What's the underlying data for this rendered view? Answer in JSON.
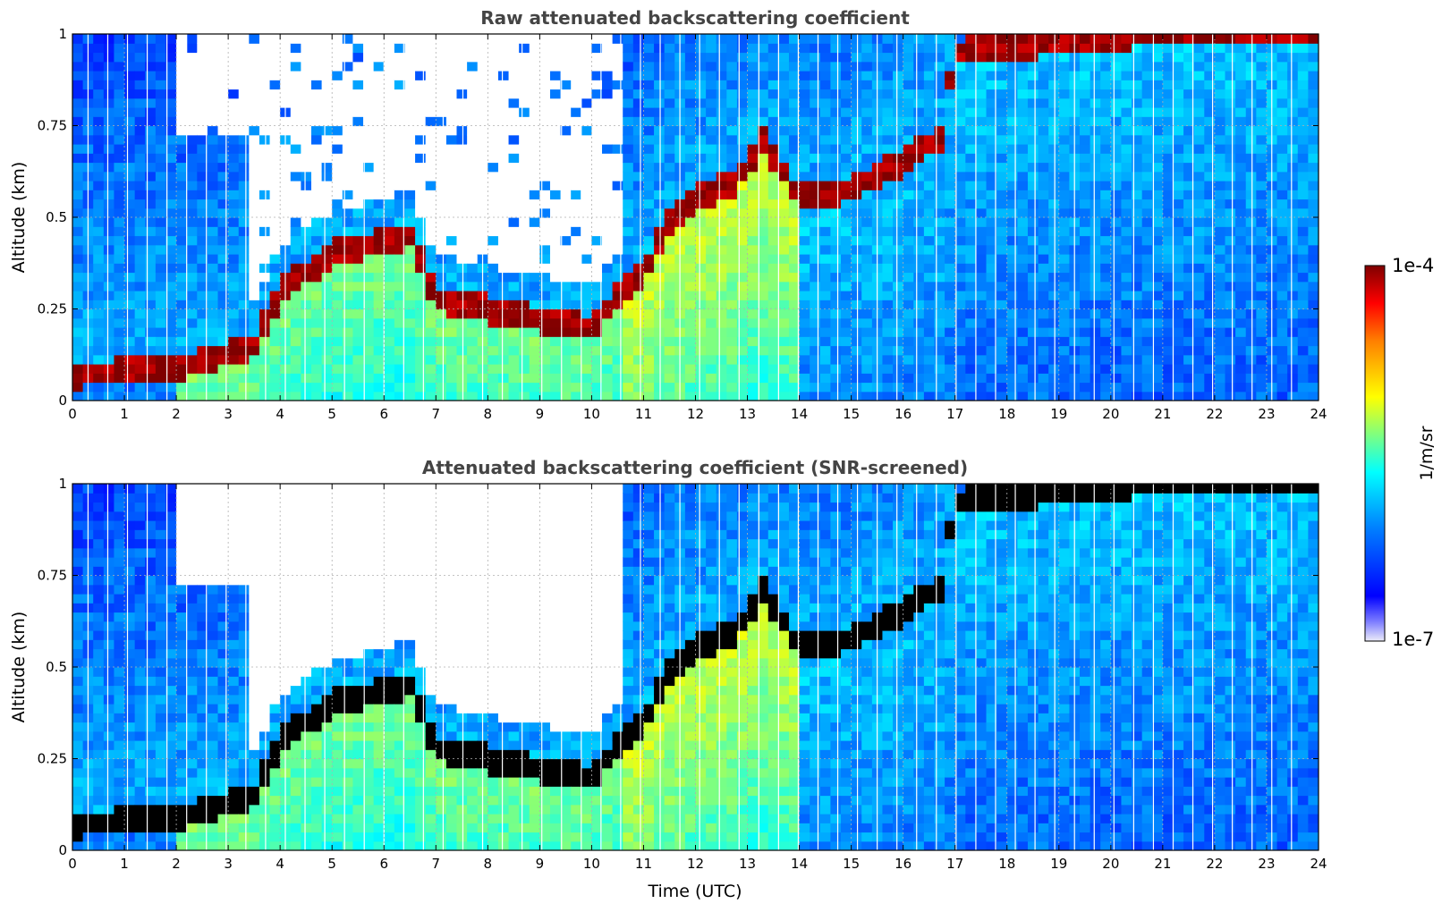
{
  "chart_data": [
    {
      "type": "heatmap",
      "title": "Raw attenuated backscattering coefficient",
      "xlabel": "",
      "ylabel": "Altitude (km)",
      "xlim": [
        0,
        24
      ],
      "ylim": [
        0,
        1
      ],
      "x_ticks": [
        "0",
        "1",
        "2",
        "3",
        "4",
        "5",
        "6",
        "7",
        "8",
        "9",
        "10",
        "11",
        "12",
        "13",
        "14",
        "15",
        "16",
        "17",
        "18",
        "19",
        "20",
        "21",
        "22",
        "23",
        "24"
      ],
      "y_ticks": [
        "0",
        "0.25",
        "0.5",
        "0.75",
        "1"
      ],
      "grid": true,
      "variant": "raw",
      "layer_top_km": [
        [
          0,
          0.07
        ],
        [
          2,
          0.09
        ],
        [
          3.5,
          0.15
        ],
        [
          4,
          0.3
        ],
        [
          5,
          0.4
        ],
        [
          6.5,
          0.45
        ],
        [
          7,
          0.28
        ],
        [
          8,
          0.25
        ],
        [
          9,
          0.22
        ],
        [
          10,
          0.2
        ],
        [
          10.5,
          0.28
        ],
        [
          11,
          0.35
        ],
        [
          11.5,
          0.48
        ],
        [
          12,
          0.55
        ],
        [
          12.8,
          0.6
        ],
        [
          13.3,
          0.72
        ],
        [
          14,
          0.55
        ],
        [
          15,
          0.58
        ],
        [
          16,
          0.65
        ],
        [
          16.7,
          0.72
        ],
        [
          17,
          0.95
        ],
        [
          20.5,
          1.0
        ]
      ],
      "colorbar": {
        "label": "1/m/sr",
        "min_label": "1e-7",
        "max_label": "1e-4",
        "scale": "log"
      }
    },
    {
      "type": "heatmap",
      "title": "Attenuated backscattering coefficient (SNR-screened)",
      "xlabel": "Time (UTC)",
      "ylabel": "Altitude (km)",
      "xlim": [
        0,
        24
      ],
      "ylim": [
        0,
        1
      ],
      "x_ticks": [
        "0",
        "1",
        "2",
        "3",
        "4",
        "5",
        "6",
        "7",
        "8",
        "9",
        "10",
        "11",
        "12",
        "13",
        "14",
        "15",
        "16",
        "17",
        "18",
        "19",
        "20",
        "21",
        "22",
        "23",
        "24"
      ],
      "y_ticks": [
        "0",
        "0.25",
        "0.5",
        "0.75",
        "1"
      ],
      "grid": true,
      "variant": "screened",
      "layer_top_km": [
        [
          0,
          0.07
        ],
        [
          2,
          0.09
        ],
        [
          3.5,
          0.15
        ],
        [
          4,
          0.3
        ],
        [
          5,
          0.4
        ],
        [
          6.5,
          0.45
        ],
        [
          7,
          0.28
        ],
        [
          8,
          0.25
        ],
        [
          9,
          0.22
        ],
        [
          10,
          0.2
        ],
        [
          10.5,
          0.28
        ],
        [
          11,
          0.35
        ],
        [
          11.5,
          0.48
        ],
        [
          12,
          0.55
        ],
        [
          12.8,
          0.6
        ],
        [
          13.3,
          0.72
        ],
        [
          14,
          0.55
        ],
        [
          15,
          0.58
        ],
        [
          16,
          0.65
        ],
        [
          16.7,
          0.72
        ],
        [
          17,
          0.95
        ],
        [
          20.5,
          1.0
        ]
      ],
      "colorbar": {
        "label": "1/m/sr",
        "min_label": "1e-7",
        "max_label": "1e-4",
        "scale": "log"
      }
    }
  ],
  "colors": {
    "jet": [
      "#00007f",
      "#0000ff",
      "#007fff",
      "#00ffff",
      "#7fff7f",
      "#ffff00",
      "#ff7f00",
      "#ff0000",
      "#7f0000"
    ],
    "screened_saturation": "#000000",
    "title_color": "#444444"
  }
}
